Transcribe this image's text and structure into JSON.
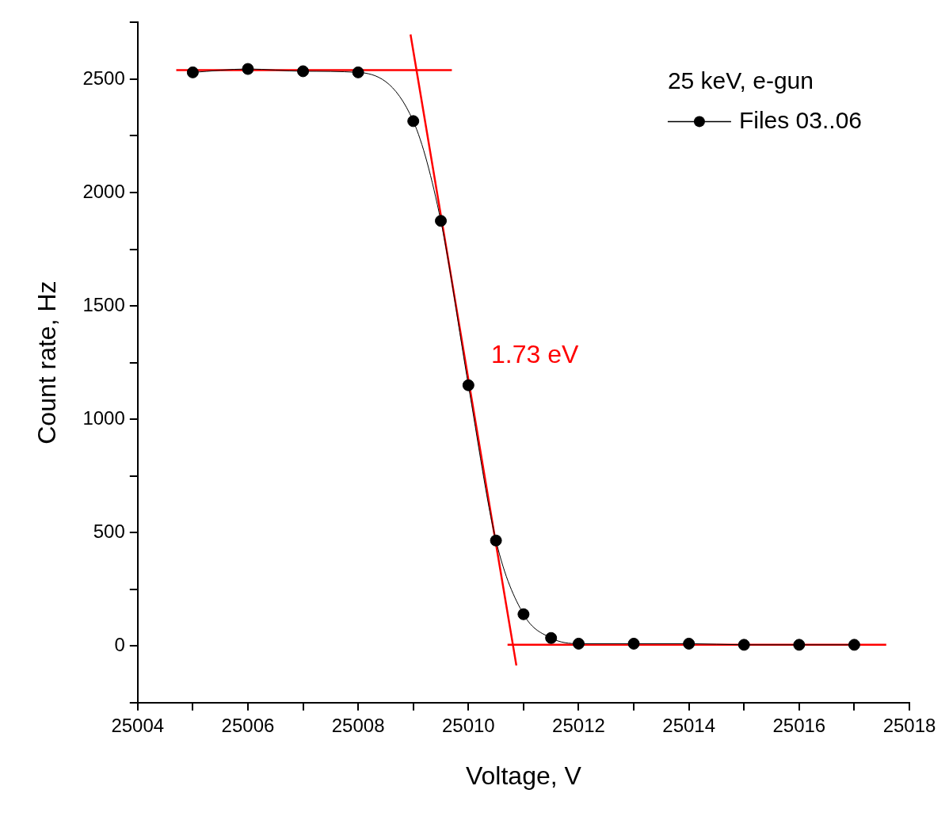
{
  "chart_data": {
    "type": "line",
    "xlabel": "Voltage, V",
    "ylabel": "Count rate, Hz",
    "legend_title": "25 keV, e-gun",
    "legend": "top right",
    "grid": false,
    "xlim": [
      25004,
      25018
    ],
    "xticks": [
      25004,
      {
        "value": 25005,
        "label": null
      },
      25006,
      {
        "value": 25007,
        "label": null
      },
      25008,
      {
        "value": 25009,
        "label": null
      },
      25010,
      {
        "value": 25011,
        "label": null
      },
      25012,
      {
        "value": 25013,
        "label": null
      },
      25014,
      {
        "value": 25015,
        "label": null
      },
      25016,
      {
        "value": 25017,
        "label": null
      },
      25018
    ],
    "ylim": [
      -250,
      2750
    ],
    "yticks": [
      {
        "value": -250,
        "label": null
      },
      0,
      {
        "value": 250,
        "label": null
      },
      500,
      {
        "value": 750,
        "label": null
      },
      1000,
      {
        "value": 1250,
        "label": null
      },
      1500,
      {
        "value": 1750,
        "label": null
      },
      2000,
      {
        "value": 2250,
        "label": null
      },
      2500,
      {
        "value": 2750,
        "label": null
      }
    ],
    "series": [
      {
        "name": "Files 03..06",
        "color": "#000000",
        "marker": "circle",
        "x": [
          25005,
          25006,
          25007,
          25008,
          25009,
          25009.5,
          25010,
          25010.5,
          25011,
          25011.5,
          25012,
          25013,
          25014,
          25015,
          25016,
          25017
        ],
        "values": [
          2530,
          2545,
          2535,
          2530,
          2315,
          1875,
          1150,
          465,
          140,
          35,
          10,
          10,
          10,
          5,
          5,
          5
        ]
      },
      {
        "color": "#ff0000",
        "marker": "none",
        "x": [
          25004.7,
          25009.7
        ],
        "values": [
          2540,
          2540
        ]
      },
      {
        "color": "#ff0000",
        "marker": "none",
        "x": [
          25008.95,
          25010.87
        ],
        "values": [
          2697,
          -86
        ]
      },
      {
        "color": "#ff0000",
        "marker": "none",
        "x": [
          25010.71,
          25017.58
        ],
        "values": [
          5,
          5
        ]
      }
    ],
    "annotations": [
      "1.73 eV"
    ]
  }
}
